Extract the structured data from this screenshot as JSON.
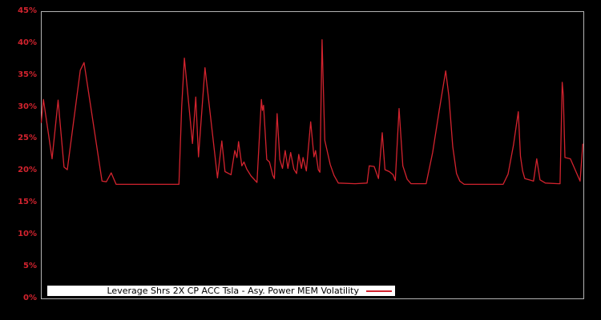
{
  "chart_data": {
    "type": "line",
    "title": "Leverage Shrs 2X CP ACC Tsla - Asy. Power MEM Volatility",
    "xlabel": "",
    "ylabel": "",
    "ylim": [
      0,
      45
    ],
    "x_ticks": [],
    "y_ticks": [
      "45%",
      "40%",
      "35%",
      "30%",
      "25%",
      "20%",
      "15%",
      "10%",
      "5%",
      "0%"
    ],
    "y_tick_values": [
      45,
      40,
      35,
      30,
      25,
      20,
      15,
      10,
      5,
      0
    ],
    "grid": false,
    "legend": {
      "position": "bottom-left-inside",
      "label": "Leverage Shrs 2X CP ACC Tsla - Asy. Power MEM Volatility"
    },
    "colors": {
      "background": "#000000",
      "line": "#d2232e",
      "axis_labels": "#d2232e",
      "plot_border": "#b3b3b3",
      "legend_background": "#ffffff",
      "legend_text": "#000000"
    },
    "series": [
      {
        "name": "Leverage Shrs 2X CP ACC Tsla - Asy. Power MEM Volatility",
        "x_unit": "fraction-of-axis",
        "y_unit": "percent",
        "points": [
          [
            0.0,
            27.6
          ],
          [
            0.004,
            31.2
          ],
          [
            0.02,
            21.9
          ],
          [
            0.031,
            31.1
          ],
          [
            0.042,
            20.6
          ],
          [
            0.048,
            20.2
          ],
          [
            0.072,
            35.8
          ],
          [
            0.079,
            37.0
          ],
          [
            0.112,
            18.4
          ],
          [
            0.12,
            18.3
          ],
          [
            0.129,
            19.7
          ],
          [
            0.138,
            17.9
          ],
          [
            0.254,
            17.9
          ],
          [
            0.259,
            30.0
          ],
          [
            0.264,
            37.7
          ],
          [
            0.279,
            24.3
          ],
          [
            0.285,
            31.6
          ],
          [
            0.29,
            22.2
          ],
          [
            0.302,
            36.2
          ],
          [
            0.325,
            18.9
          ],
          [
            0.333,
            24.7
          ],
          [
            0.339,
            19.9
          ],
          [
            0.35,
            19.4
          ],
          [
            0.357,
            23.2
          ],
          [
            0.361,
            22.1
          ],
          [
            0.364,
            24.6
          ],
          [
            0.37,
            20.8
          ],
          [
            0.374,
            21.4
          ],
          [
            0.379,
            20.3
          ],
          [
            0.387,
            19.2
          ],
          [
            0.398,
            18.2
          ],
          [
            0.406,
            31.2
          ],
          [
            0.408,
            29.5
          ],
          [
            0.41,
            30.3
          ],
          [
            0.416,
            21.8
          ],
          [
            0.421,
            21.4
          ],
          [
            0.427,
            19.3
          ],
          [
            0.43,
            18.8
          ],
          [
            0.435,
            29.0
          ],
          [
            0.44,
            21.8
          ],
          [
            0.445,
            20.4
          ],
          [
            0.45,
            23.2
          ],
          [
            0.455,
            20.4
          ],
          [
            0.46,
            22.9
          ],
          [
            0.466,
            20.3
          ],
          [
            0.471,
            19.6
          ],
          [
            0.475,
            22.6
          ],
          [
            0.48,
            20.4
          ],
          [
            0.483,
            22.1
          ],
          [
            0.489,
            20.0
          ],
          [
            0.497,
            27.7
          ],
          [
            0.503,
            22.2
          ],
          [
            0.506,
            23.2
          ],
          [
            0.511,
            20.2
          ],
          [
            0.514,
            19.8
          ],
          [
            0.518,
            40.6
          ],
          [
            0.523,
            24.8
          ],
          [
            0.527,
            23.3
          ],
          [
            0.533,
            21.0
          ],
          [
            0.54,
            19.3
          ],
          [
            0.548,
            18.1
          ],
          [
            0.579,
            18.0
          ],
          [
            0.601,
            18.1
          ],
          [
            0.605,
            20.8
          ],
          [
            0.614,
            20.7
          ],
          [
            0.622,
            18.8
          ],
          [
            0.629,
            26.0
          ],
          [
            0.634,
            20.2
          ],
          [
            0.642,
            19.9
          ],
          [
            0.649,
            19.4
          ],
          [
            0.653,
            18.5
          ],
          [
            0.66,
            29.8
          ],
          [
            0.667,
            20.8
          ],
          [
            0.675,
            18.7
          ],
          [
            0.682,
            18.0
          ],
          [
            0.71,
            18.0
          ],
          [
            0.722,
            22.9
          ],
          [
            0.734,
            29.5
          ],
          [
            0.746,
            35.7
          ],
          [
            0.752,
            31.7
          ],
          [
            0.759,
            23.8
          ],
          [
            0.766,
            19.6
          ],
          [
            0.772,
            18.4
          ],
          [
            0.78,
            17.9
          ],
          [
            0.852,
            17.9
          ],
          [
            0.861,
            19.5
          ],
          [
            0.871,
            24.0
          ],
          [
            0.88,
            29.3
          ],
          [
            0.884,
            22.3
          ],
          [
            0.888,
            20.0
          ],
          [
            0.892,
            18.8
          ],
          [
            0.9,
            18.6
          ],
          [
            0.908,
            18.4
          ],
          [
            0.914,
            21.9
          ],
          [
            0.92,
            18.6
          ],
          [
            0.93,
            18.1
          ],
          [
            0.954,
            18.0
          ],
          [
            0.957,
            18.0
          ],
          [
            0.961,
            33.9
          ],
          [
            0.963,
            31.8
          ],
          [
            0.966,
            22.1
          ],
          [
            0.976,
            21.9
          ],
          [
            0.994,
            18.4
          ],
          [
            0.999,
            24.2
          ]
        ]
      }
    ]
  }
}
